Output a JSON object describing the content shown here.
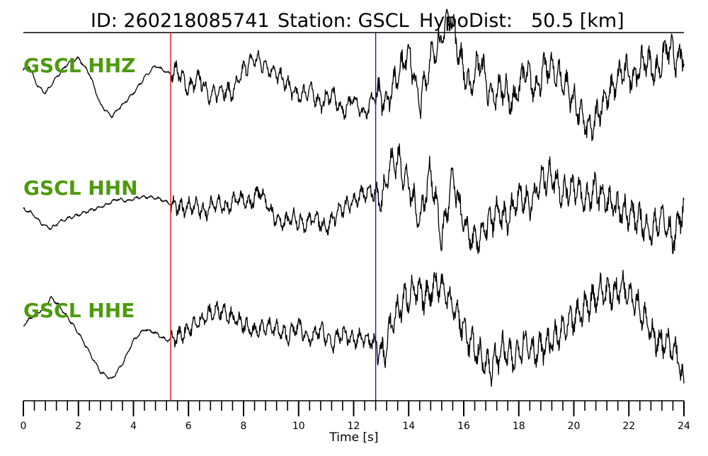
{
  "header": {
    "id_label": "ID: 260218085741",
    "station_label": "Station: GSCL",
    "hypodist_label": "HypoDist:",
    "hypodist_value": "50.5 [km]"
  },
  "chart_data": {
    "type": "line",
    "title": "ID: 260218085741   Station: GSCL   HypoDist:    50.5 [km]",
    "xlabel": "Time [s]",
    "ylabel": "",
    "xlim": [
      0,
      24
    ],
    "x_ticks": [
      0,
      2,
      4,
      6,
      8,
      10,
      12,
      14,
      16,
      18,
      20,
      22,
      24
    ],
    "x_tick_labels": [
      "0",
      "2",
      "4",
      "6",
      "8",
      "10",
      "12",
      "14",
      "16",
      "18",
      "20",
      "22",
      "24"
    ],
    "minor_tick_step": 0.4,
    "grid": false,
    "p_pick": {
      "time": 5.35,
      "color": "#e8191c"
    },
    "s_pick": {
      "time": 12.8,
      "color": "#1a1aaa"
    },
    "trace_label_color": "#4d9a0c",
    "series": [
      {
        "name": "GSCL HHZ",
        "x": [
          0,
          0.2,
          0.5,
          0.8,
          1.2,
          1.6,
          2.0,
          2.4,
          2.8,
          3.2,
          3.6,
          4.0,
          4.4,
          4.8,
          5.3,
          5.6,
          6.0,
          6.4,
          6.8,
          7.2,
          7.6,
          8.0,
          8.4,
          8.8,
          9.2,
          9.6,
          10.0,
          10.4,
          10.8,
          11.2,
          11.6,
          12.0,
          12.4,
          12.8,
          13.2,
          13.6,
          14.0,
          14.4,
          14.8,
          15.2,
          15.5,
          15.8,
          16.2,
          16.6,
          17.0,
          17.4,
          17.8,
          18.2,
          18.6,
          19.0,
          19.4,
          19.8,
          20.2,
          20.6,
          21.0,
          21.4,
          21.8,
          22.2,
          22.6,
          23.0,
          23.4,
          23.8,
          24.0
        ],
        "y": [
          0.3,
          0.4,
          -0.1,
          -0.3,
          0.1,
          0.45,
          0.6,
          0.2,
          -0.6,
          -0.9,
          -0.6,
          -0.3,
          0.1,
          0.4,
          0.2,
          0.3,
          -0.2,
          0.1,
          -0.4,
          -0.2,
          -0.3,
          0.3,
          0.6,
          0.4,
          0.2,
          -0.1,
          -0.4,
          -0.2,
          -0.6,
          -0.3,
          -0.8,
          -0.4,
          -0.9,
          -0.3,
          -0.5,
          0.2,
          0.8,
          -0.6,
          0.6,
          1.1,
          1.8,
          0.8,
          -0.2,
          0.6,
          -0.5,
          -0.1,
          -0.6,
          0.3,
          -0.2,
          0.4,
          0.2,
          -0.2,
          -0.8,
          -1.3,
          -0.6,
          -0.2,
          0.3,
          0.1,
          0.6,
          0.2,
          0.9,
          0.5,
          0.7
        ]
      },
      {
        "name": "GSCL HHN",
        "x": [
          0,
          0.3,
          0.7,
          1.0,
          1.4,
          1.8,
          2.2,
          2.6,
          3.0,
          3.4,
          3.8,
          4.2,
          4.6,
          5.0,
          5.4,
          5.8,
          6.2,
          6.6,
          7.0,
          7.4,
          7.8,
          8.2,
          8.6,
          9.0,
          9.4,
          9.8,
          10.2,
          10.6,
          11.0,
          11.4,
          11.8,
          12.2,
          12.6,
          13.0,
          13.3,
          13.6,
          14.0,
          14.4,
          14.8,
          15.2,
          15.6,
          16.0,
          16.4,
          16.8,
          17.2,
          17.6,
          18.0,
          18.4,
          18.8,
          19.2,
          19.6,
          20.0,
          20.4,
          20.8,
          21.2,
          21.6,
          22.0,
          22.4,
          22.8,
          23.2,
          23.6,
          24.0
        ],
        "y": [
          0.0,
          -0.1,
          -0.4,
          -0.5,
          -0.3,
          -0.2,
          -0.1,
          0.0,
          0.1,
          0.25,
          0.2,
          0.3,
          0.3,
          0.25,
          0.1,
          0.0,
          0.1,
          -0.1,
          0.2,
          0.0,
          0.3,
          0.1,
          0.5,
          -0.1,
          -0.4,
          -0.2,
          -0.4,
          -0.2,
          -0.5,
          -0.1,
          0.1,
          0.3,
          0.5,
          0.2,
          1.1,
          1.3,
          0.6,
          -0.3,
          1.0,
          -0.8,
          0.8,
          -0.4,
          -0.9,
          -0.5,
          -0.1,
          -0.3,
          0.4,
          0.1,
          0.7,
          0.9,
          0.4,
          0.6,
          0.2,
          0.5,
          0.2,
          0.0,
          -0.1,
          -0.3,
          -0.6,
          -0.2,
          -0.8,
          0.1
        ]
      },
      {
        "name": "GSCL HHE",
        "x": [
          0,
          0.3,
          0.7,
          1.0,
          1.3,
          1.6,
          2.0,
          2.4,
          2.8,
          3.2,
          3.6,
          4.0,
          4.4,
          4.8,
          5.2,
          5.6,
          6.0,
          6.4,
          6.8,
          7.2,
          7.6,
          8.0,
          8.4,
          8.8,
          9.2,
          9.6,
          10.0,
          10.4,
          10.8,
          11.2,
          11.6,
          12.0,
          12.4,
          12.8,
          13.1,
          13.4,
          13.8,
          14.2,
          14.6,
          15.0,
          15.4,
          15.8,
          16.2,
          16.6,
          17.0,
          17.4,
          17.8,
          18.2,
          18.6,
          19.0,
          19.4,
          19.8,
          20.2,
          20.6,
          21.0,
          21.4,
          21.8,
          22.2,
          22.6,
          23.0,
          23.4,
          23.8,
          24.0
        ],
        "y": [
          0.2,
          0.4,
          0.6,
          0.9,
          0.7,
          0.4,
          0.0,
          -0.5,
          -1.0,
          -1.2,
          -0.8,
          -0.2,
          0.1,
          0.0,
          -0.2,
          -0.1,
          0.1,
          0.3,
          0.5,
          0.6,
          0.4,
          0.2,
          0.0,
          0.2,
          0.1,
          -0.1,
          0.2,
          -0.2,
          0.1,
          -0.3,
          0.0,
          -0.2,
          -0.1,
          -0.3,
          -0.6,
          0.3,
          0.8,
          1.1,
          0.9,
          1.3,
          1.0,
          0.4,
          -0.2,
          -0.6,
          -0.9,
          -0.4,
          -0.7,
          -0.2,
          -0.5,
          -0.3,
          -0.1,
          0.2,
          0.5,
          0.8,
          1.1,
          1.0,
          1.2,
          0.9,
          0.3,
          -0.2,
          -0.3,
          -0.6,
          -1.5
        ]
      }
    ]
  }
}
